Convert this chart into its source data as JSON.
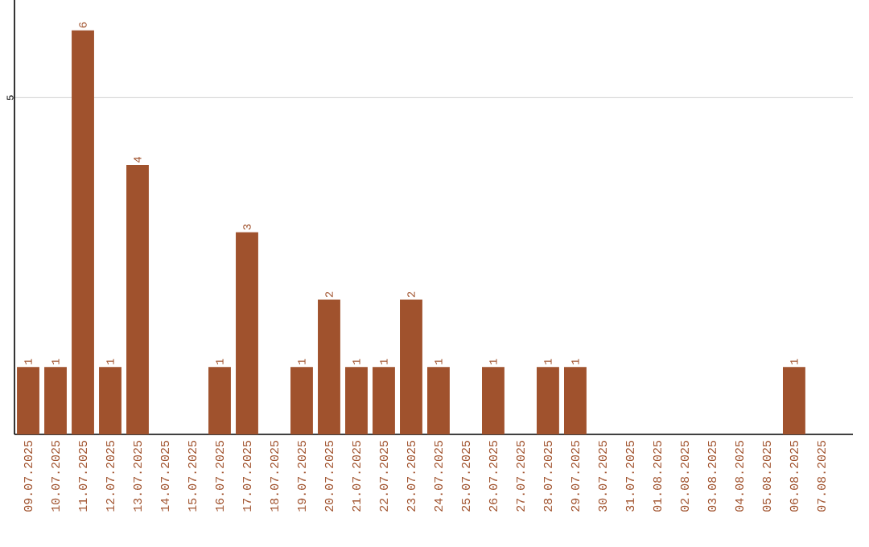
{
  "chart_data": {
    "type": "bar",
    "categories": [
      "09.07.2025",
      "10.07.2025",
      "11.07.2025",
      "12.07.2025",
      "13.07.2025",
      "14.07.2025",
      "15.07.2025",
      "16.07.2025",
      "17.07.2025",
      "18.07.2025",
      "19.07.2025",
      "20.07.2025",
      "21.07.2025",
      "22.07.2025",
      "23.07.2025",
      "24.07.2025",
      "25.07.2025",
      "26.07.2025",
      "27.07.2025",
      "28.07.2025",
      "29.07.2025",
      "30.07.2025",
      "31.07.2025",
      "01.08.2025",
      "02.08.2025",
      "03.08.2025",
      "04.08.2025",
      "05.08.2025",
      "06.08.2025",
      "07.08.2025"
    ],
    "values": [
      1,
      1,
      6,
      1,
      4,
      0,
      0,
      1,
      3,
      0,
      1,
      2,
      1,
      1,
      2,
      1,
      0,
      1,
      0,
      1,
      1,
      0,
      0,
      0,
      0,
      0,
      0,
      0,
      1,
      0
    ],
    "value_labels": [
      "1",
      "1",
      "6",
      "1",
      "4",
      null,
      null,
      "1",
      "3",
      null,
      "1",
      "2",
      "1",
      "1",
      "2",
      "1",
      null,
      "1",
      null,
      "1",
      "1",
      null,
      null,
      null,
      null,
      null,
      null,
      null,
      "1",
      null
    ],
    "color": "#a0522d",
    "ylim": [
      0,
      6.45
    ],
    "yticks": [
      5
    ],
    "grid": "y"
  }
}
